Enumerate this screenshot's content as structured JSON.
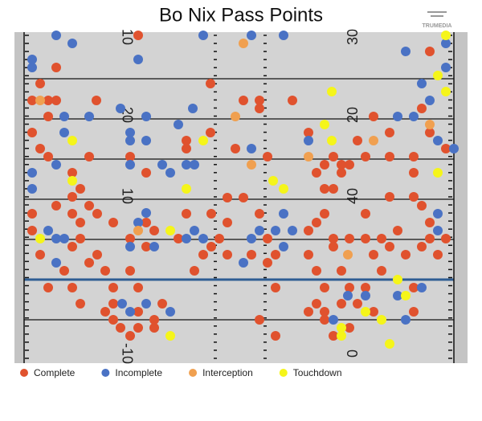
{
  "chart_data": {
    "type": "scatter",
    "title": "Bo Nix Pass Points",
    "logo": "TRUMEDIA",
    "xlim": [
      0,
      53.5
    ],
    "ylim": [
      -10.4,
      30.8
    ],
    "yticks": [
      -5,
      0,
      5,
      10,
      15,
      20,
      25
    ],
    "grid": true,
    "reference_line": 0,
    "reference_color": "#2e5d93",
    "field_numbers_left": [
      "10",
      "20",
      "10",
      "-10"
    ],
    "field_numbers_right": [
      "30",
      "20",
      "40",
      "0"
    ],
    "legend": "bottom-left",
    "series": [
      {
        "name": "Complete",
        "color": "#e0522e",
        "x": [
          14.2,
          4,
          2,
          23.2,
          50.5,
          1,
          3,
          4,
          9,
          27.3,
          29.3,
          33.4,
          29.3,
          49.5,
          3,
          43.5,
          35.4,
          1,
          50.5,
          23.2,
          20.2,
          45.5,
          41.5,
          20.2,
          2,
          3,
          8.1,
          13.2,
          26.3,
          30.3,
          38.5,
          42.5,
          45.5,
          48.5,
          52.5,
          37.4,
          39.5,
          40.5,
          48.5,
          6,
          15.2,
          36.4,
          39.5,
          37.4,
          38.5,
          7,
          6,
          45.5,
          48.5,
          4,
          8.1,
          25.3,
          27.3,
          1,
          6,
          9.1,
          20.2,
          23.3,
          37.4,
          42.5,
          49.5,
          7,
          11.1,
          15.2,
          25.3,
          29.3,
          36.4,
          46.5,
          50.5,
          1,
          7,
          13.2,
          16.2,
          19.2,
          24.3,
          30.3,
          35.4,
          38.5,
          40.5,
          42.5,
          44.5,
          50.5,
          52.5,
          2,
          6,
          9.1,
          15.2,
          22.3,
          23.3,
          25.3,
          28.3,
          31.3,
          35.4,
          38.5,
          43.5,
          45.5,
          47.5,
          49.5,
          51.5,
          5,
          8.1,
          10.1,
          13.2,
          21.2,
          30.3,
          36.4,
          39.5,
          44.5,
          3,
          6,
          11.1,
          14.2,
          31.3,
          37.4,
          40.5,
          42.5,
          48.5,
          7,
          11.1,
          17.2,
          36.4,
          39.5,
          41.5,
          10.1,
          14.2,
          35.4,
          37.4,
          11.1,
          16.2,
          29.3,
          43.5,
          48.5,
          12,
          14.2,
          16.2,
          37.4,
          40.5,
          31.3,
          13.2,
          38.5
        ],
        "y": [
          30.4,
          26.4,
          24.4,
          24.4,
          28.4,
          22.3,
          22.3,
          22.3,
          22.3,
          22.3,
          22.3,
          22.3,
          21.3,
          21.3,
          20.3,
          20.3,
          18.3,
          18.3,
          18.3,
          18.3,
          17.3,
          18.3,
          17.3,
          16.3,
          16.3,
          15.3,
          15.3,
          15.3,
          16.3,
          15.3,
          15.3,
          15.3,
          15.3,
          15.3,
          16.3,
          14.3,
          14.3,
          14.3,
          13.3,
          13.3,
          13.3,
          13.3,
          13.3,
          11.3,
          11.3,
          11.3,
          10.3,
          10.3,
          10.3,
          9.2,
          9.2,
          10.2,
          10.2,
          8.2,
          8.2,
          8.2,
          8.2,
          8.2,
          8.2,
          8.2,
          9.2,
          7.1,
          7.1,
          7.1,
          7.1,
          8.2,
          7.1,
          6.1,
          7.1,
          6.1,
          5.1,
          5.1,
          6.1,
          5.1,
          5.1,
          5.1,
          6.1,
          5.1,
          5.1,
          5.1,
          5.1,
          5.1,
          5.1,
          3.1,
          4.1,
          3.1,
          4.1,
          3.1,
          4.1,
          3.1,
          3.1,
          3.1,
          3.1,
          4.1,
          3.1,
          4.1,
          3.1,
          4.1,
          3.1,
          1.1,
          2.1,
          1.1,
          1.1,
          1.1,
          2.1,
          1.1,
          1.1,
          1.1,
          -1,
          -1,
          -1,
          -1,
          -1,
          -1,
          -1,
          -1,
          -1,
          -3,
          -3,
          -3,
          -3,
          -3,
          -3,
          -4,
          -4,
          -4,
          -4,
          -5,
          -5,
          -5,
          -4,
          -4,
          -6,
          -6,
          -6,
          -5,
          -6,
          -7,
          -7,
          -7
        ]
      },
      {
        "name": "Incomplete",
        "color": "#4a72c4",
        "x": [
          4,
          22.3,
          32.3,
          28.3,
          6,
          1,
          1,
          14.2,
          47.5,
          52.5,
          49.5,
          52.5,
          50.5,
          12,
          21,
          5,
          8.1,
          15.2,
          46.5,
          48.5,
          5,
          13.2,
          19.2,
          35.4,
          51.5,
          53.5,
          13.2,
          15.2,
          28.3,
          1,
          4,
          13.2,
          17.2,
          20.2,
          21.2,
          18.2,
          1,
          15.2,
          14.2,
          32.3,
          51.5,
          3,
          4,
          5,
          20.2,
          21.2,
          22.3,
          29.3,
          31.3,
          33.4,
          13.2,
          16.2,
          28.3,
          4,
          27.3,
          32.3,
          51.5,
          49.5,
          46.5,
          15.2,
          12.2,
          13.2,
          18.2,
          47.5,
          42.5,
          40.3,
          38.5
        ],
        "y": [
          30.4,
          30.4,
          30.4,
          30.4,
          29.4,
          27.4,
          26.4,
          27.4,
          28.4,
          29.4,
          24.4,
          26.4,
          22.3,
          21.3,
          21.3,
          20.3,
          20.3,
          20.3,
          20.3,
          20.3,
          18.3,
          18.3,
          19.3,
          17.3,
          17.3,
          16.3,
          17.3,
          17.3,
          16.3,
          13.3,
          14.3,
          14.3,
          14.3,
          14.3,
          14.3,
          13.3,
          11.3,
          8.3,
          7.1,
          8.2,
          8.2,
          6.1,
          5.1,
          5.1,
          5.1,
          6.1,
          5.1,
          6.1,
          6.1,
          6.1,
          4.1,
          4.1,
          5.1,
          2.1,
          2.1,
          4.1,
          6.1,
          -1,
          -2,
          -3,
          -3,
          -4,
          -4,
          -5,
          -2,
          -2,
          -5
        ]
      },
      {
        "name": "Interception",
        "color": "#f0a050",
        "x": [
          27.3,
          2,
          26.3,
          43.5,
          50.5,
          35.4,
          28.3,
          40.3,
          14.2
        ],
        "y": [
          29.4,
          22.3,
          20.3,
          17.3,
          19.3,
          15.3,
          14.3,
          3.1,
          6.1
        ]
      },
      {
        "name": "Touchdown",
        "color": "#f5f51a",
        "x": [
          52.5,
          51.5,
          38.3,
          52.5,
          37.4,
          38.3,
          6,
          22.3,
          31,
          32.3,
          20.2,
          51.5,
          6,
          2,
          18.2,
          46.5,
          47.5,
          42.5,
          44.5,
          39.5,
          39.5,
          45.5,
          18.2
        ],
        "y": [
          30.4,
          25.4,
          23.4,
          23.4,
          19.3,
          17.3,
          17.3,
          17.3,
          12.3,
          11.3,
          11.3,
          13.3,
          12.3,
          5.1,
          6.1,
          0,
          -2,
          -4,
          -5,
          -6,
          -7,
          -8,
          -7
        ]
      }
    ]
  }
}
